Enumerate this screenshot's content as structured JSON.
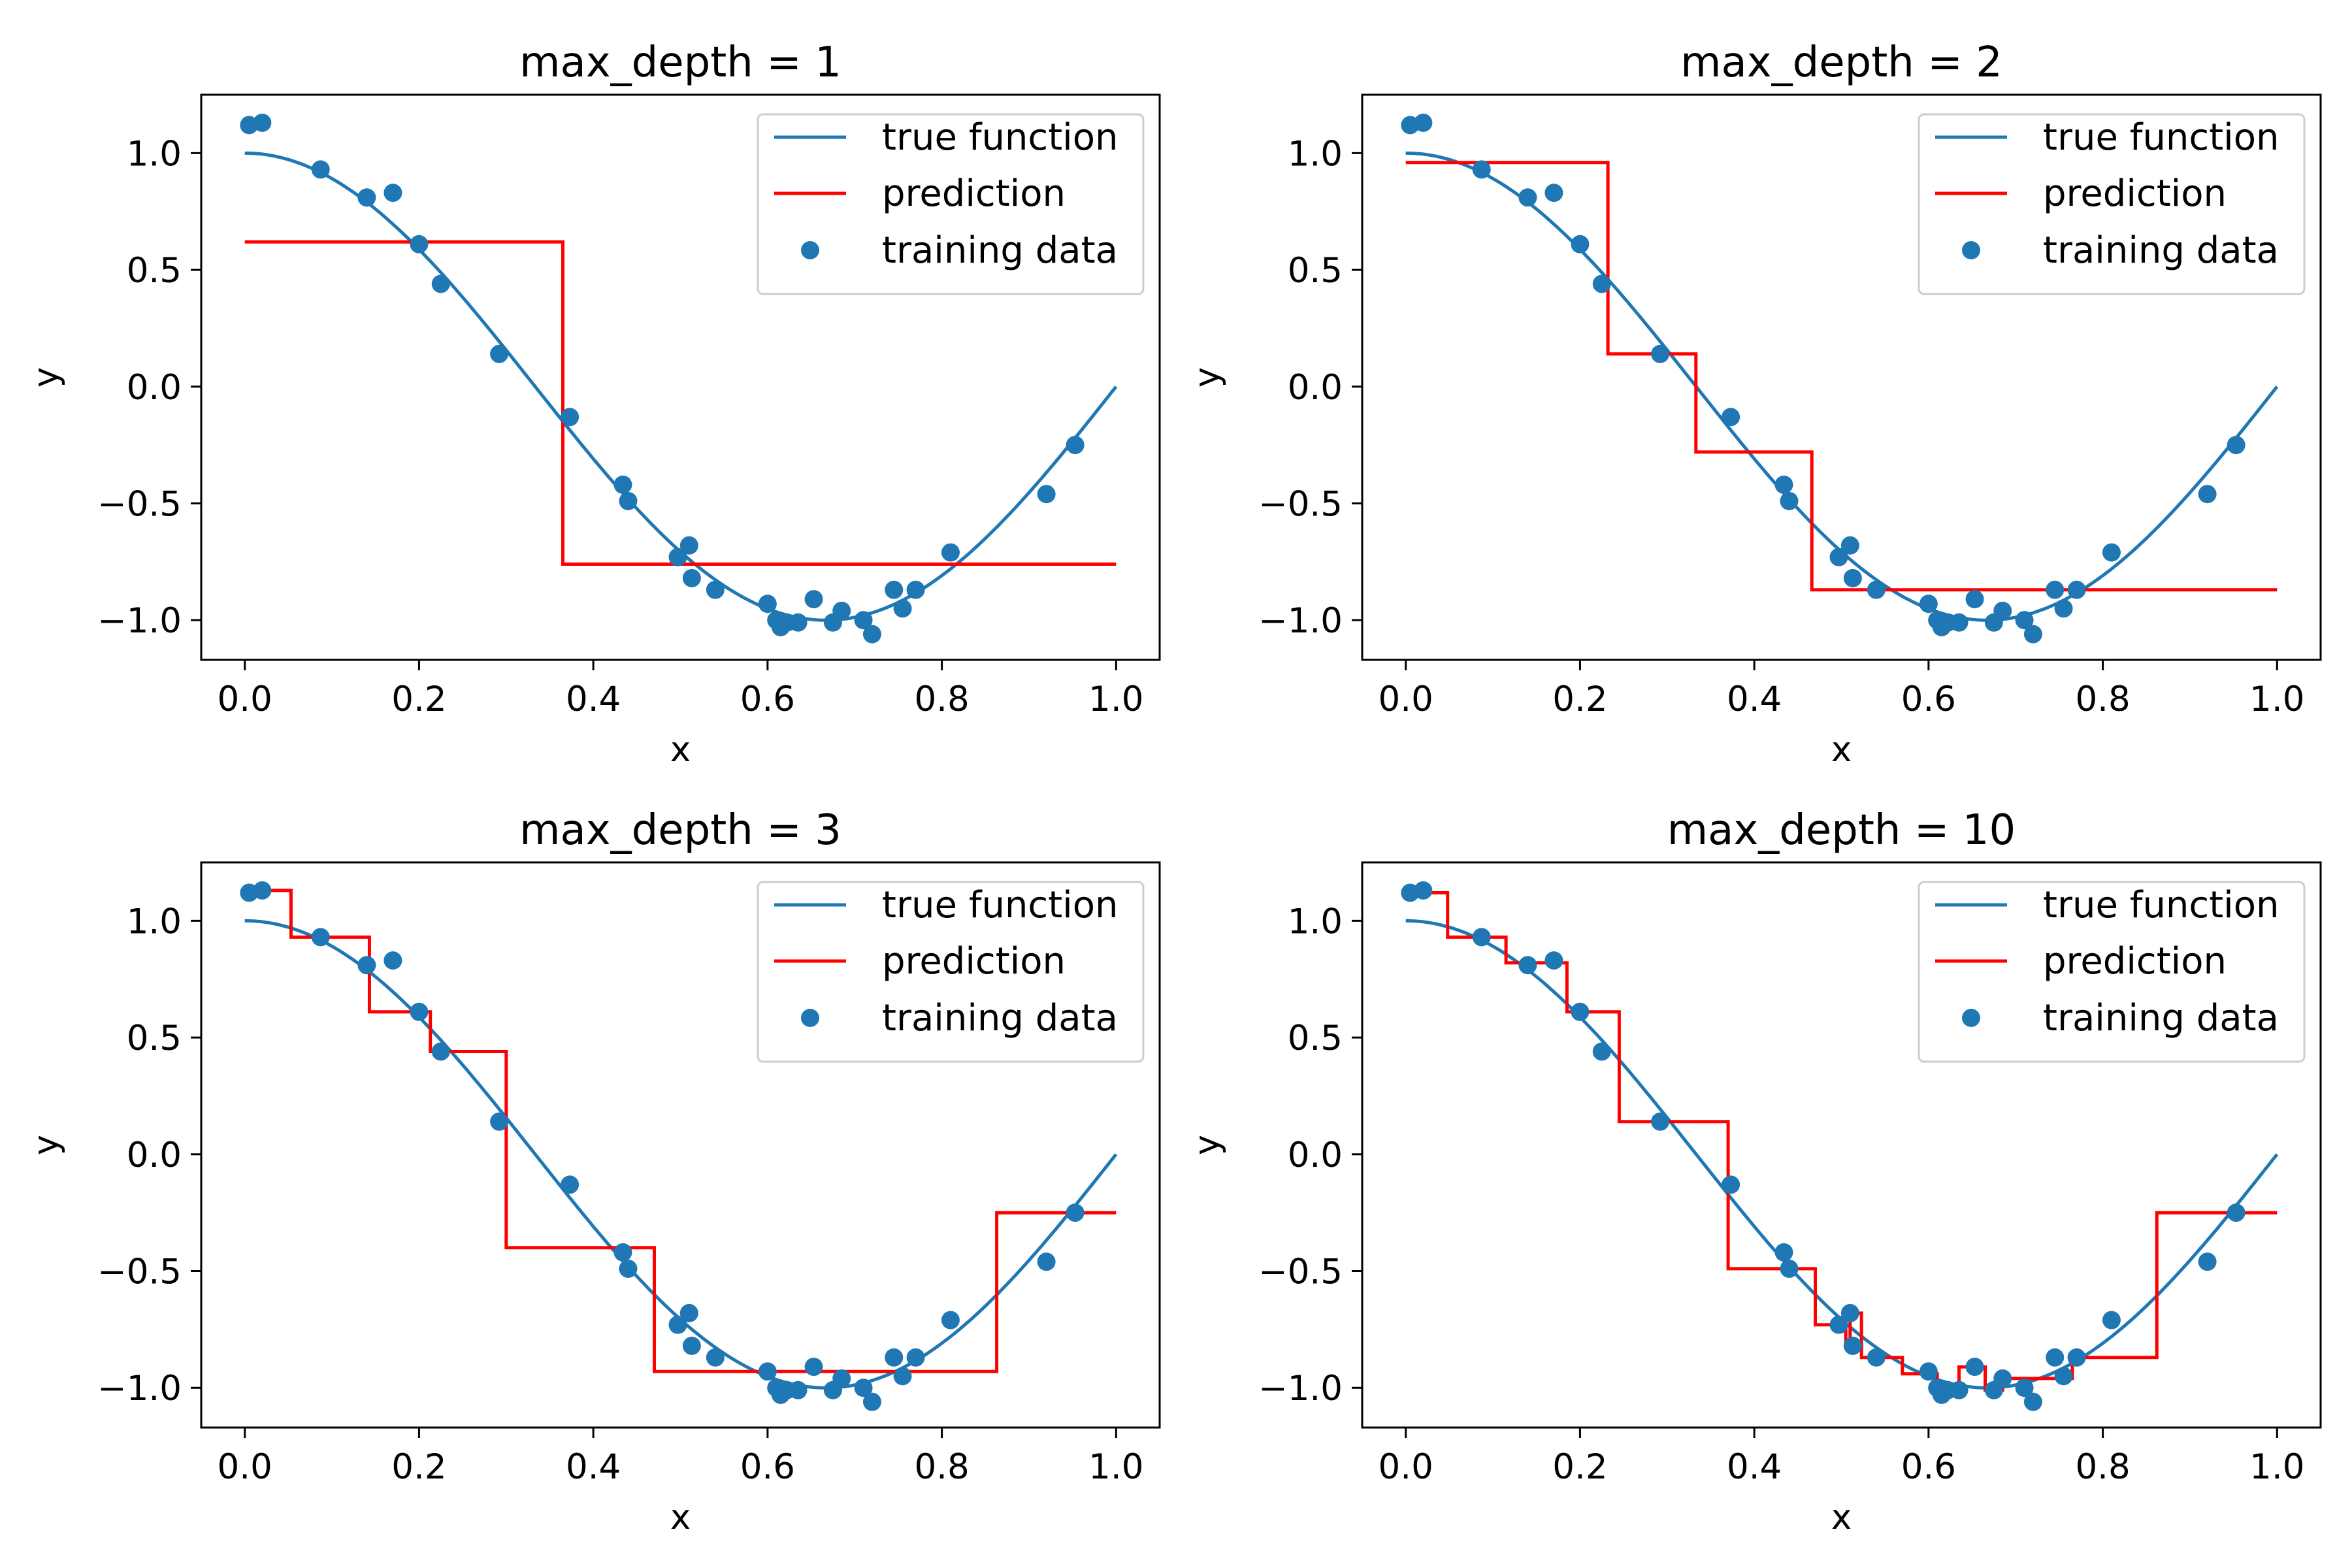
{
  "colors": {
    "true_function": "#1f77b4",
    "prediction": "#ff0000",
    "training_data": "#1f77b4"
  },
  "chart_data": [
    {
      "type": "line",
      "title": "max_depth = 1",
      "xlabel": "x",
      "ylabel": "y",
      "xlim": [
        -0.05,
        1.05
      ],
      "ylim": [
        -1.17,
        1.25
      ],
      "xticks": [
        "0.0",
        "0.2",
        "0.4",
        "0.6",
        "0.8",
        "1.0"
      ],
      "yticks": [
        "−1.0",
        "−0.5",
        "0.0",
        "0.5",
        "1.0"
      ],
      "legend": {
        "placement": "top-right",
        "entries": [
          "true function",
          "prediction",
          "training data"
        ]
      },
      "prediction": {
        "x": [
          0.0,
          0.365,
          0.365,
          1.0
        ],
        "y": [
          0.62,
          0.62,
          -0.76,
          -0.76
        ]
      }
    },
    {
      "type": "line",
      "title": "max_depth = 2",
      "xlabel": "x",
      "ylabel": "y",
      "xlim": [
        -0.05,
        1.05
      ],
      "ylim": [
        -1.17,
        1.25
      ],
      "xticks": [
        "0.0",
        "0.2",
        "0.4",
        "0.6",
        "0.8",
        "1.0"
      ],
      "yticks": [
        "−1.0",
        "−0.5",
        "0.0",
        "0.5",
        "1.0"
      ],
      "legend": {
        "placement": "top-right",
        "entries": [
          "true function",
          "prediction",
          "training data"
        ]
      },
      "prediction": {
        "x": [
          0.0,
          0.232,
          0.232,
          0.333,
          0.333,
          0.466,
          0.466,
          1.0
        ],
        "y": [
          0.96,
          0.96,
          0.14,
          0.14,
          -0.28,
          -0.28,
          -0.87,
          -0.87
        ]
      }
    },
    {
      "type": "line",
      "title": "max_depth = 3",
      "xlabel": "x",
      "ylabel": "y",
      "xlim": [
        -0.05,
        1.05
      ],
      "ylim": [
        -1.17,
        1.25
      ],
      "xticks": [
        "0.0",
        "0.2",
        "0.4",
        "0.6",
        "0.8",
        "1.0"
      ],
      "yticks": [
        "−1.0",
        "−0.5",
        "0.0",
        "0.5",
        "1.0"
      ],
      "legend": {
        "placement": "top-right",
        "entries": [
          "true function",
          "prediction",
          "training data"
        ]
      },
      "prediction": {
        "x": [
          0.0,
          0.053,
          0.053,
          0.143,
          0.143,
          0.213,
          0.213,
          0.3,
          0.3,
          0.47,
          0.47,
          0.863,
          0.863,
          1.0
        ],
        "y": [
          1.13,
          1.13,
          0.93,
          0.93,
          0.61,
          0.61,
          0.44,
          0.44,
          -0.4,
          -0.4,
          -0.93,
          -0.93,
          -0.25,
          -0.25
        ]
      }
    },
    {
      "type": "line",
      "title": "max_depth = 10",
      "xlabel": "x",
      "ylabel": "y",
      "xlim": [
        -0.05,
        1.05
      ],
      "ylim": [
        -1.17,
        1.25
      ],
      "xticks": [
        "0.0",
        "0.2",
        "0.4",
        "0.6",
        "0.8",
        "1.0"
      ],
      "yticks": [
        "−1.0",
        "−0.5",
        "0.0",
        "0.5",
        "1.0"
      ],
      "legend": {
        "placement": "top-right",
        "entries": [
          "true function",
          "prediction",
          "training data"
        ]
      },
      "prediction": {
        "x": [
          0.0,
          0.048,
          0.048,
          0.115,
          0.115,
          0.185,
          0.185,
          0.245,
          0.245,
          0.37,
          0.37,
          0.47,
          0.47,
          0.505,
          0.505,
          0.51,
          0.51,
          0.523,
          0.523,
          0.57,
          0.57,
          0.61,
          0.61,
          0.635,
          0.635,
          0.665,
          0.665,
          0.685,
          0.685,
          0.765,
          0.765,
          0.862,
          0.862,
          1.0
        ],
        "y": [
          1.12,
          1.12,
          0.93,
          0.93,
          0.82,
          0.82,
          0.61,
          0.61,
          0.14,
          0.14,
          -0.49,
          -0.49,
          -0.73,
          -0.73,
          -0.82,
          -0.82,
          -0.68,
          -0.68,
          -0.87,
          -0.87,
          -0.94,
          -0.94,
          -1.01,
          -1.01,
          -0.91,
          -0.91,
          -1.01,
          -1.01,
          -0.96,
          -0.96,
          -0.87,
          -0.87,
          -0.25,
          -0.25
        ]
      }
    }
  ],
  "training_data": {
    "x": [
      0.005,
      0.02,
      0.087,
      0.14,
      0.17,
      0.2,
      0.225,
      0.292,
      0.373,
      0.434,
      0.44,
      0.497,
      0.51,
      0.513,
      0.54,
      0.6,
      0.61,
      0.615,
      0.622,
      0.635,
      0.653,
      0.675,
      0.685,
      0.71,
      0.72,
      0.745,
      0.755,
      0.77,
      0.81,
      0.92,
      0.953
    ],
    "y": [
      1.12,
      1.13,
      0.93,
      0.81,
      0.83,
      0.61,
      0.44,
      0.14,
      -0.13,
      -0.42,
      -0.49,
      -0.73,
      -0.68,
      -0.82,
      -0.87,
      -0.93,
      -1.0,
      -1.03,
      -1.01,
      -1.01,
      -0.91,
      -1.01,
      -0.96,
      -1.0,
      -1.06,
      -0.87,
      -0.95,
      -0.87,
      -0.71,
      -0.46,
      -0.25
    ]
  }
}
